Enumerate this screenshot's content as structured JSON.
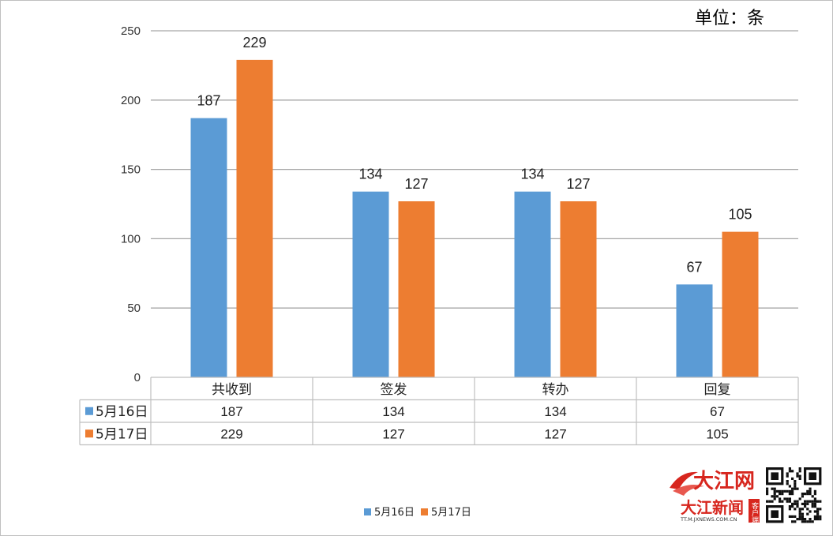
{
  "unit_label": "单位：条",
  "colors": {
    "series1": "#5b9bd5",
    "series2": "#ed7d31",
    "grid": "#a6a6a6",
    "table_border": "#bfbfbf"
  },
  "logo": {
    "brand": "大江网",
    "app": "大江新闻",
    "tag": "客户端",
    "url": "TT.M.JXNEWS.COM.CN"
  },
  "chart_data": {
    "type": "bar",
    "title": "",
    "xlabel": "",
    "ylabel": "",
    "categories": [
      "共收到",
      "签发",
      "转办",
      "回复"
    ],
    "series": [
      {
        "name": "5月16日",
        "values": [
          187,
          134,
          134,
          67
        ]
      },
      {
        "name": "5月17日",
        "values": [
          229,
          127,
          127,
          105
        ]
      }
    ],
    "ylim": [
      0,
      250
    ],
    "yticks": [
      0,
      50,
      100,
      150,
      200,
      250
    ],
    "grid": true,
    "legend": "bottom",
    "data_table": true
  }
}
